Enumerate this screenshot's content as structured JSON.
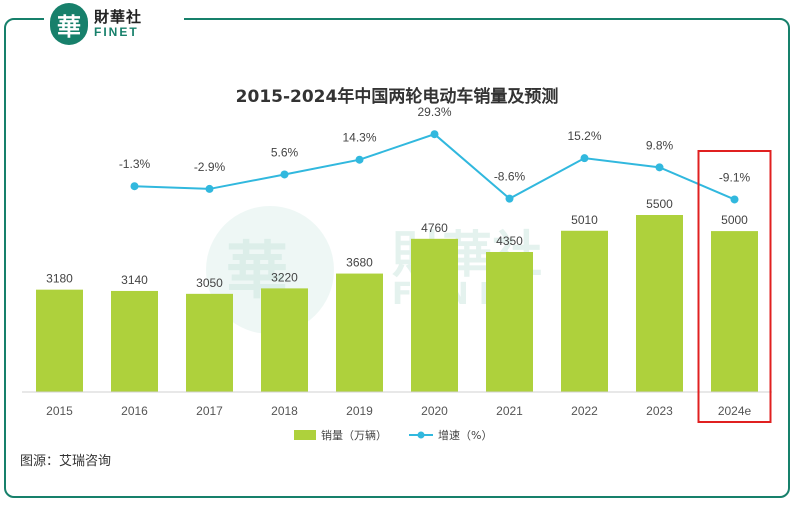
{
  "brand": {
    "seal_char": "華",
    "name_cn": "財華社",
    "name_en": "FINET"
  },
  "source": "图源：艾瑞咨询",
  "colors": {
    "bar": "#aed13c",
    "line": "#31b8de",
    "frame": "#17806b",
    "highlight": "#e02020"
  },
  "chart_data": {
    "type": "bar",
    "title": "2015-2024年中国两轮电动车销量及预测",
    "categories": [
      "2015",
      "2016",
      "2017",
      "2018",
      "2019",
      "2020",
      "2021",
      "2022",
      "2023",
      "2024e"
    ],
    "series": [
      {
        "name": "销量（万辆）",
        "type": "bar",
        "values": [
          3180,
          3140,
          3050,
          3220,
          3680,
          4760,
          4350,
          5010,
          5500,
          5000
        ]
      },
      {
        "name": "增速（%）",
        "type": "line",
        "values": [
          null,
          -1.3,
          -2.9,
          5.6,
          14.3,
          29.3,
          -8.6,
          15.2,
          9.8,
          -9.1
        ]
      }
    ],
    "growth_labels": [
      "-1.3%",
      "-2.9%",
      "5.6%",
      "14.3%",
      "29.3%",
      "-8.6%",
      "15.2%",
      "9.8%",
      "-9.1%"
    ],
    "highlighted_category": "2024e",
    "legend_position": "bottom",
    "grid": false
  }
}
